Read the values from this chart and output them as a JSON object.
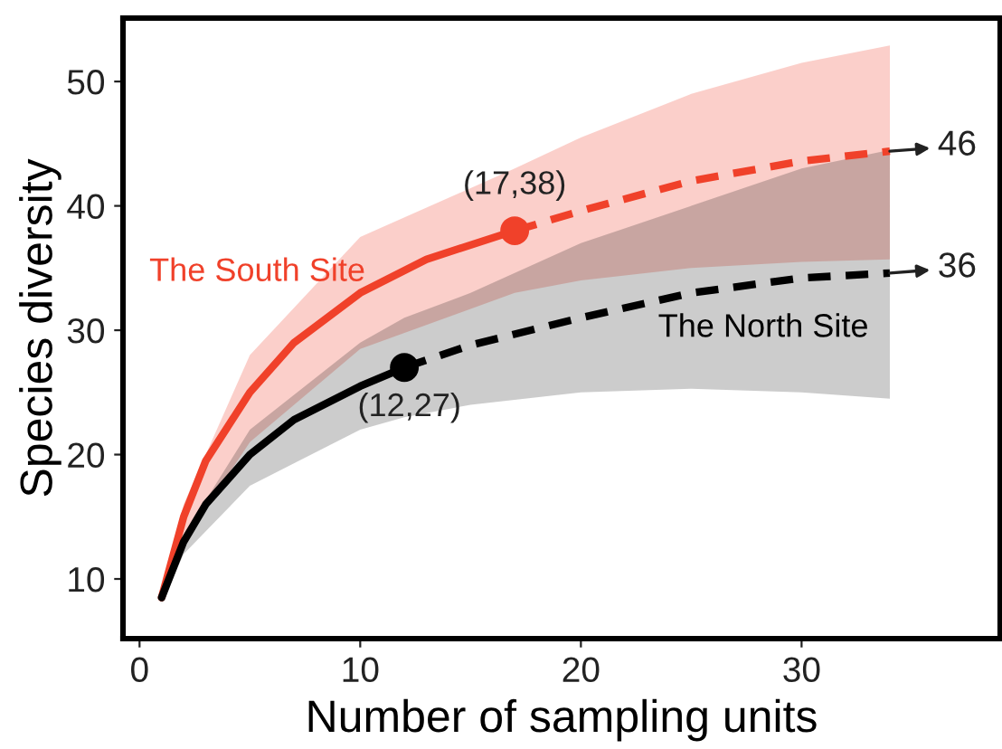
{
  "chart_data": {
    "type": "line",
    "xlabel": "Number of sampling units",
    "ylabel": "Species diversity",
    "xlim": [
      -0.75,
      39
    ],
    "ylim": [
      5.2,
      55.1
    ],
    "xticks": [
      0,
      10,
      20,
      30
    ],
    "yticks": [
      10,
      20,
      30,
      40,
      50
    ],
    "grid": false,
    "legend": false,
    "series": [
      {
        "color": "#f0412a",
        "line_style": "solid",
        "x": [
          1,
          2,
          3,
          5,
          7,
          10,
          13,
          17
        ],
        "values": [
          8.5,
          15,
          19.5,
          25,
          29,
          33,
          35.7,
          38
        ]
      },
      {
        "name": "The South Site",
        "color": "#f0412a",
        "line_style": "dashed",
        "x": [
          1,
          2,
          5,
          10,
          17,
          20,
          25,
          30,
          34
        ],
        "values": [
          null,
          null,
          null,
          null,
          38,
          39.6,
          42,
          43.6,
          44.4
        ],
        "lower": [
          8.5,
          13,
          21,
          28.5,
          33,
          34,
          35,
          35.5,
          35.7
        ],
        "upper": [
          9,
          16,
          28,
          37.5,
          43,
          45.5,
          49,
          51.5,
          52.9
        ]
      },
      {
        "color": "#000000",
        "line_style": "solid",
        "x": [
          1,
          2,
          3,
          5,
          7,
          10,
          12
        ],
        "values": [
          8.5,
          13,
          16,
          20,
          22.8,
          25.5,
          27
        ]
      },
      {
        "name": "The North Site",
        "color": "#000000",
        "line_style": "dashed",
        "x": [
          1,
          2,
          5,
          10,
          12,
          15,
          20,
          25,
          30,
          34
        ],
        "values": [
          null,
          null,
          null,
          null,
          27,
          28.8,
          31,
          33,
          34.2,
          34.6
        ],
        "lower": [
          8,
          12,
          17.5,
          22,
          23,
          24,
          25,
          25.3,
          25,
          24.5
        ],
        "upper": [
          8.5,
          13.5,
          22,
          29,
          31,
          33,
          37,
          40,
          43,
          44.5
        ]
      },
      {
        "type": "scatter",
        "marker": "circle",
        "color": "#f0412a",
        "x": [
          17
        ],
        "values": [
          38
        ]
      },
      {
        "type": "scatter",
        "marker": "circle",
        "color": "#000000",
        "x": [
          12
        ],
        "values": [
          27
        ]
      }
    ],
    "annotations": [
      {
        "text": "(17,38)",
        "x": 17,
        "y": 38
      },
      {
        "text": "(12,27)",
        "x": 12,
        "y": 27
      },
      {
        "text": "46",
        "x": 34,
        "y": 44.4
      },
      {
        "text": "36",
        "x": 34,
        "y": 34.6
      }
    ]
  }
}
